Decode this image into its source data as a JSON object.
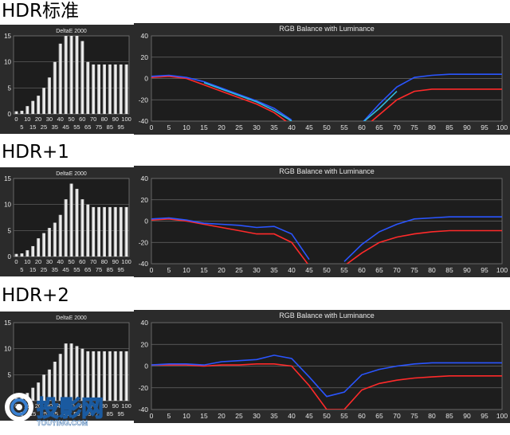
{
  "sections": [
    {
      "title": "HDR标准"
    },
    {
      "title": "HDR+1"
    },
    {
      "title": "HDR+2"
    }
  ],
  "watermark": {
    "text": "投影网",
    "subtext": "TOUYING.COM"
  },
  "colors": {
    "red": "#ff2a2a",
    "blue": "#2a55ff",
    "cyan": "#33bbdd",
    "panel": "#2b2b2b",
    "grid": "#5a5a5a"
  },
  "chart_data": [
    {
      "type": "bar",
      "title": "DeltaE 2000",
      "ylim": [
        0,
        15
      ],
      "yticks": [
        0,
        5,
        10,
        15
      ],
      "categories": [
        "0",
        "5",
        "10",
        "15",
        "20",
        "25",
        "30",
        "35",
        "40",
        "45",
        "50",
        "55",
        "60",
        "65",
        "70",
        "75",
        "80",
        "85",
        "90",
        "95",
        "100"
      ],
      "values": [
        0.5,
        0.6,
        1.5,
        2.5,
        3.5,
        5,
        7,
        10,
        13.5,
        15,
        15,
        15,
        14,
        10,
        9.5,
        9.5,
        9.5,
        9.5,
        9.5,
        9.5,
        9.5
      ]
    },
    {
      "type": "line",
      "title": "RGB Balance with Luminance",
      "ylim": [
        -40,
        40
      ],
      "yticks": [
        -40,
        -20,
        0,
        20,
        40
      ],
      "x": [
        0,
        5,
        10,
        15,
        20,
        25,
        30,
        35,
        40,
        45,
        50,
        55,
        60,
        65,
        70,
        75,
        80,
        85,
        90,
        95,
        100
      ],
      "series": [
        {
          "color": "red",
          "values": [
            1,
            2,
            0,
            -6,
            -12,
            -18,
            -24,
            -32,
            -44,
            null,
            null,
            null,
            -48,
            -34,
            -20,
            -12,
            -10,
            -10,
            -10,
            -10,
            -10
          ]
        },
        {
          "color": "blue",
          "values": [
            2,
            3,
            1,
            -3,
            -9,
            -15,
            -21,
            -28,
            -39,
            null,
            null,
            null,
            -42,
            -24,
            -8,
            1,
            3,
            4,
            4,
            4,
            4
          ]
        },
        {
          "color": "cyan",
          "values": [
            null,
            null,
            null,
            -4,
            -10,
            -16,
            -22,
            -30,
            -40,
            null,
            null,
            null,
            -42,
            -28,
            -12,
            null,
            null,
            null,
            null,
            null,
            null
          ]
        }
      ]
    },
    {
      "type": "bar",
      "title": "DeltaE 2000",
      "ylim": [
        0,
        15
      ],
      "yticks": [
        0,
        5,
        10,
        15
      ],
      "categories": [
        "0",
        "5",
        "10",
        "15",
        "20",
        "25",
        "30",
        "35",
        "40",
        "45",
        "50",
        "55",
        "60",
        "65",
        "70",
        "75",
        "80",
        "85",
        "90",
        "95",
        "100"
      ],
      "values": [
        0.5,
        0.6,
        1.2,
        2,
        3.5,
        4.5,
        5.5,
        6.5,
        8,
        11,
        14,
        13,
        11,
        10,
        9.5,
        9.5,
        9.5,
        9.5,
        9.5,
        9.5,
        9.5
      ]
    },
    {
      "type": "line",
      "title": "RGB Balance with Luminance",
      "ylim": [
        -40,
        40
      ],
      "yticks": [
        -40,
        -20,
        0,
        20,
        40
      ],
      "x": [
        0,
        5,
        10,
        15,
        20,
        25,
        30,
        35,
        40,
        45,
        50,
        55,
        60,
        65,
        70,
        75,
        80,
        85,
        90,
        95,
        100
      ],
      "series": [
        {
          "color": "red",
          "values": [
            1,
            2,
            0,
            -3,
            -6,
            -9,
            -12,
            -12,
            -20,
            -42,
            null,
            -42,
            -30,
            -20,
            -15,
            -12,
            -10,
            -9,
            -9,
            -9,
            -9
          ]
        },
        {
          "color": "blue",
          "values": [
            2,
            3,
            1,
            -2,
            -3,
            -4,
            -6,
            -5,
            -12,
            -36,
            null,
            -38,
            -22,
            -10,
            -3,
            2,
            3,
            4,
            4,
            4,
            4
          ]
        }
      ]
    },
    {
      "type": "bar",
      "title": "DeltaE 2000",
      "ylim": [
        0,
        15
      ],
      "yticks": [
        0,
        5,
        10,
        15
      ],
      "categories": [
        "0",
        "5",
        "10",
        "15",
        "20",
        "25",
        "30",
        "35",
        "40",
        "45",
        "50",
        "55",
        "60",
        "65",
        "70",
        "75",
        "80",
        "85",
        "90",
        "95",
        "100"
      ],
      "values": [
        0.5,
        0.6,
        1.5,
        2.5,
        3.5,
        5,
        6,
        7.5,
        9,
        11,
        11,
        10.5,
        10,
        9.5,
        9.5,
        9.5,
        9.5,
        9.5,
        9.5,
        9.5,
        9.5
      ]
    },
    {
      "type": "line",
      "title": "RGB Balance with Luminance",
      "ylim": [
        -40,
        40
      ],
      "yticks": [
        -40,
        -20,
        0,
        20,
        40
      ],
      "x": [
        0,
        5,
        10,
        15,
        20,
        25,
        30,
        35,
        40,
        45,
        50,
        55,
        60,
        65,
        70,
        75,
        80,
        85,
        90,
        95,
        100
      ],
      "series": [
        {
          "color": "red",
          "values": [
            1,
            1,
            1,
            0,
            1,
            1,
            2,
            2,
            0,
            -18,
            -40,
            -40,
            -22,
            -16,
            -13,
            -11,
            -10,
            -9,
            -9,
            -9,
            -9
          ]
        },
        {
          "color": "blue",
          "values": [
            1,
            2,
            2,
            1,
            4,
            5,
            6,
            10,
            7,
            -10,
            -28,
            -24,
            -8,
            -3,
            0,
            2,
            3,
            3,
            3,
            3,
            3
          ]
        }
      ]
    }
  ]
}
